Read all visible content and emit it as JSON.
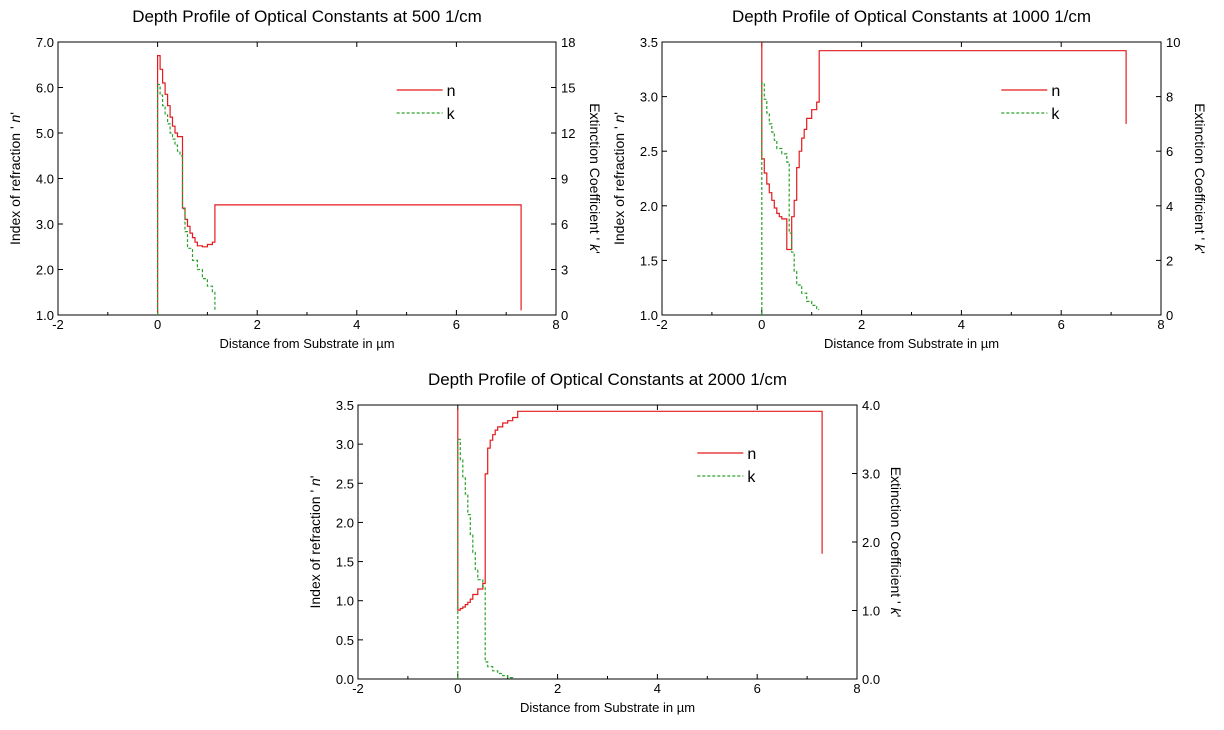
{
  "colors": {
    "n": "#e41a1c",
    "k": "#2ca02c",
    "axis": "#000000"
  },
  "chart_data": [
    {
      "type": "line",
      "title": "Depth Profile of Optical Constants at 500 1/cm",
      "xlabel": "Distance from Substrate in µm",
      "ylabel": [
        "Index of refraction ' ",
        "n",
        "'"
      ],
      "y2label": [
        "Extinction Coefficient ' ",
        "k",
        "'"
      ],
      "xlim": [
        -2,
        8
      ],
      "ylim": [
        1.0,
        7.0
      ],
      "y2lim": [
        0,
        18
      ],
      "xticks": [
        -2,
        0,
        2,
        4,
        6,
        8
      ],
      "yticks": [
        "1.0",
        "2.0",
        "3.0",
        "4.0",
        "5.0",
        "6.0",
        "7.0"
      ],
      "y2ticks": [
        "0",
        "3",
        "6",
        "9",
        "12",
        "15",
        "18"
      ],
      "legend": [
        "n",
        "k"
      ],
      "legend_position": "upper-right",
      "series": [
        {
          "name": "n",
          "axis": "left",
          "style": "solid",
          "x": [
            0,
            0,
            0.05,
            0.05,
            0.1,
            0.1,
            0.15,
            0.15,
            0.2,
            0.2,
            0.25,
            0.25,
            0.3,
            0.3,
            0.35,
            0.35,
            0.4,
            0.4,
            0.5,
            0.5,
            0.55,
            0.55,
            0.6,
            0.6,
            0.65,
            0.65,
            0.7,
            0.7,
            0.75,
            0.75,
            0.8,
            0.8,
            0.9,
            0.9,
            1.0,
            1.0,
            1.1,
            1.1,
            1.15,
            1.15,
            7.3,
            7.3
          ],
          "y": [
            1.0,
            6.7,
            6.7,
            6.4,
            6.4,
            6.1,
            6.1,
            5.85,
            5.85,
            5.6,
            5.6,
            5.35,
            5.35,
            5.15,
            5.15,
            5.0,
            5.0,
            4.92,
            4.92,
            3.35,
            3.35,
            3.1,
            3.1,
            2.95,
            2.95,
            2.8,
            2.8,
            2.7,
            2.7,
            2.6,
            2.6,
            2.52,
            2.52,
            2.5,
            2.5,
            2.55,
            2.55,
            2.6,
            2.6,
            3.42,
            3.42,
            1.1
          ]
        },
        {
          "name": "k",
          "axis": "right",
          "style": "dashed",
          "x": [
            0,
            0,
            0.05,
            0.05,
            0.1,
            0.1,
            0.15,
            0.15,
            0.2,
            0.2,
            0.25,
            0.25,
            0.3,
            0.3,
            0.35,
            0.35,
            0.4,
            0.4,
            0.45,
            0.45,
            0.5,
            0.5,
            0.55,
            0.55,
            0.6,
            0.6,
            0.7,
            0.7,
            0.8,
            0.8,
            0.9,
            0.9,
            1.0,
            1.0,
            1.1,
            1.1,
            1.15,
            1.15
          ],
          "y": [
            0,
            15.2,
            15.2,
            14.5,
            14.5,
            13.8,
            13.8,
            13.2,
            13.2,
            12.6,
            12.6,
            12.0,
            12.0,
            11.6,
            11.6,
            11.2,
            11.2,
            10.8,
            10.8,
            10.5,
            10.5,
            7.0,
            7.0,
            5.5,
            5.5,
            4.4,
            4.4,
            3.6,
            3.6,
            3.0,
            3.0,
            2.4,
            2.4,
            1.9,
            1.9,
            1.5,
            1.5,
            0.3
          ]
        }
      ]
    },
    {
      "type": "line",
      "title": "Depth Profile of Optical Constants at 1000 1/cm",
      "xlabel": "Distance from Substrate in µm",
      "ylabel": [
        "Index of refraction ' ",
        "n",
        "'"
      ],
      "y2label": [
        "Extinction Coefficient ' ",
        "k",
        "'"
      ],
      "xlim": [
        -2,
        8
      ],
      "ylim": [
        1.0,
        3.5
      ],
      "y2lim": [
        0,
        10
      ],
      "xticks": [
        -2,
        0,
        2,
        4,
        6,
        8
      ],
      "yticks": [
        "1.0",
        "1.5",
        "2.0",
        "2.5",
        "3.0",
        "3.5"
      ],
      "y2ticks": [
        "0",
        "2",
        "4",
        "6",
        "8",
        "10"
      ],
      "legend": [
        "n",
        "k"
      ],
      "legend_position": "upper-right",
      "series": [
        {
          "name": "n",
          "axis": "left",
          "style": "solid",
          "x": [
            0,
            0,
            0.05,
            0.05,
            0.1,
            0.1,
            0.15,
            0.15,
            0.2,
            0.2,
            0.25,
            0.25,
            0.3,
            0.3,
            0.35,
            0.35,
            0.4,
            0.4,
            0.5,
            0.5,
            0.6,
            0.6,
            0.65,
            0.65,
            0.7,
            0.7,
            0.75,
            0.75,
            0.8,
            0.8,
            0.85,
            0.85,
            0.9,
            0.9,
            1.0,
            1.0,
            1.1,
            1.1,
            1.15,
            1.15,
            7.3,
            7.3
          ],
          "y": [
            3.5,
            2.43,
            2.43,
            2.3,
            2.3,
            2.2,
            2.2,
            2.12,
            2.12,
            2.05,
            2.05,
            1.98,
            1.98,
            1.93,
            1.93,
            1.9,
            1.9,
            1.88,
            1.88,
            1.6,
            1.6,
            1.9,
            1.9,
            2.05,
            2.05,
            2.35,
            2.35,
            2.5,
            2.5,
            2.62,
            2.62,
            2.7,
            2.7,
            2.8,
            2.8,
            2.88,
            2.88,
            2.95,
            2.95,
            3.42,
            3.42,
            2.75
          ]
        },
        {
          "name": "k",
          "axis": "right",
          "style": "dashed",
          "x": [
            0,
            0,
            0.05,
            0.05,
            0.1,
            0.1,
            0.15,
            0.15,
            0.2,
            0.2,
            0.25,
            0.25,
            0.3,
            0.3,
            0.4,
            0.4,
            0.5,
            0.5,
            0.55,
            0.55,
            0.6,
            0.6,
            0.65,
            0.65,
            0.7,
            0.7,
            0.8,
            0.8,
            0.9,
            0.9,
            1.0,
            1.0,
            1.1,
            1.1,
            1.15
          ],
          "y": [
            0,
            8.5,
            8.5,
            7.9,
            7.9,
            7.4,
            7.4,
            7.0,
            7.0,
            6.7,
            6.7,
            6.4,
            6.4,
            6.1,
            6.1,
            5.9,
            5.9,
            5.6,
            5.6,
            3.0,
            3.0,
            2.3,
            2.3,
            1.6,
            1.6,
            1.1,
            1.1,
            0.8,
            0.8,
            0.5,
            0.5,
            0.35,
            0.35,
            0.2,
            0.2
          ]
        }
      ]
    },
    {
      "type": "line",
      "title": "Depth Profile of Optical Constants at 2000 1/cm",
      "xlabel": "Distance from Substrate in µm",
      "ylabel": [
        "Index of refraction ' ",
        "n",
        "'"
      ],
      "y2label": [
        "Extinction Coefficient ' ",
        "k",
        "'"
      ],
      "xlim": [
        -2,
        8
      ],
      "ylim": [
        0.0,
        3.5
      ],
      "y2lim": [
        0.0,
        4.0
      ],
      "xticks": [
        -2,
        0,
        2,
        4,
        6,
        8
      ],
      "yticks": [
        "0.0",
        "0.5",
        "1.0",
        "1.5",
        "2.0",
        "2.5",
        "3.0",
        "3.5"
      ],
      "y2ticks": [
        "0.0",
        "1.0",
        "2.0",
        "3.0",
        "4.0"
      ],
      "legend": [
        "n",
        "k"
      ],
      "legend_position": "upper-right",
      "series": [
        {
          "name": "n",
          "axis": "left",
          "style": "solid",
          "x": [
            0,
            0,
            0.05,
            0.05,
            0.1,
            0.1,
            0.15,
            0.15,
            0.2,
            0.2,
            0.25,
            0.25,
            0.3,
            0.3,
            0.4,
            0.4,
            0.5,
            0.5,
            0.55,
            0.55,
            0.6,
            0.6,
            0.65,
            0.65,
            0.7,
            0.7,
            0.75,
            0.75,
            0.8,
            0.8,
            0.9,
            0.9,
            1.0,
            1.0,
            1.1,
            1.1,
            1.2,
            1.2,
            7.3,
            7.3
          ],
          "y": [
            3.45,
            0.88,
            0.88,
            0.9,
            0.9,
            0.92,
            0.92,
            0.95,
            0.95,
            0.98,
            0.98,
            1.02,
            1.02,
            1.08,
            1.08,
            1.15,
            1.15,
            1.22,
            1.22,
            2.62,
            2.62,
            2.95,
            2.95,
            3.05,
            3.05,
            3.12,
            3.12,
            3.18,
            3.18,
            3.22,
            3.22,
            3.27,
            3.27,
            3.3,
            3.3,
            3.34,
            3.34,
            3.42,
            3.42,
            1.6
          ]
        },
        {
          "name": "k",
          "axis": "right",
          "style": "dashed",
          "x": [
            0,
            0,
            0.05,
            0.05,
            0.1,
            0.1,
            0.15,
            0.15,
            0.2,
            0.2,
            0.25,
            0.25,
            0.3,
            0.3,
            0.35,
            0.35,
            0.4,
            0.4,
            0.5,
            0.5,
            0.55,
            0.55,
            0.6,
            0.6,
            0.7,
            0.7,
            0.8,
            0.8,
            0.9,
            0.9,
            1.0,
            1.0,
            1.1,
            1.1
          ],
          "y": [
            0,
            3.5,
            3.5,
            3.2,
            3.2,
            2.95,
            2.95,
            2.7,
            2.7,
            2.4,
            2.4,
            2.1,
            2.1,
            1.85,
            1.85,
            1.6,
            1.6,
            1.45,
            1.45,
            1.35,
            1.35,
            0.25,
            0.25,
            0.18,
            0.18,
            0.12,
            0.12,
            0.08,
            0.08,
            0.05,
            0.05,
            0.02,
            0.02,
            0.01
          ]
        }
      ]
    }
  ]
}
